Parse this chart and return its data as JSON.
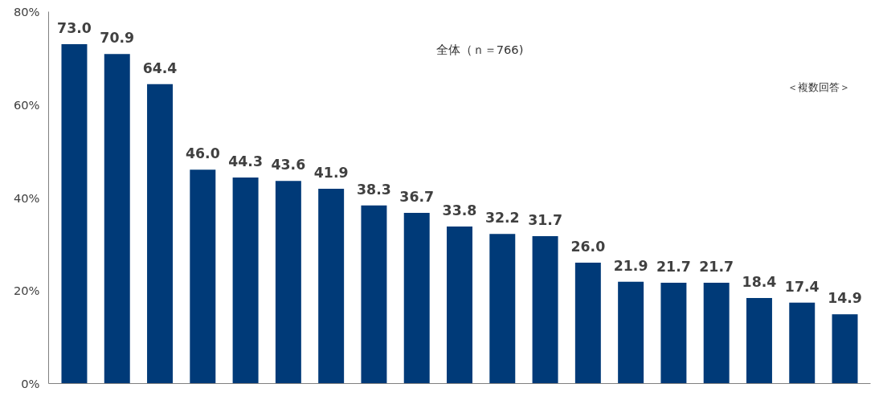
{
  "chart_data": {
    "type": "bar",
    "categories": [
      null,
      null,
      null,
      null,
      null,
      null,
      null,
      null,
      null,
      null,
      null,
      null,
      null,
      null,
      null,
      null,
      null,
      null,
      null
    ],
    "values": [
      73.0,
      70.9,
      64.4,
      46.0,
      44.3,
      43.6,
      41.9,
      38.3,
      36.7,
      33.8,
      32.2,
      31.7,
      26.0,
      21.9,
      21.7,
      21.7,
      18.4,
      17.4,
      14.9
    ],
    "color": "#003a78",
    "ylim": [
      0,
      80
    ],
    "yticks": [
      {
        "value": 0,
        "label": "0%"
      },
      {
        "value": 20,
        "label": "20%"
      },
      {
        "value": 40,
        "label": "40%"
      },
      {
        "value": 60,
        "label": "60%"
      },
      {
        "value": 80,
        "label": "80%"
      }
    ],
    "tick_labels": "y",
    "value_labels": [
      "73.0",
      "70.9",
      "64.4",
      "46.0",
      "44.3",
      "43.6",
      "41.9",
      "38.3",
      "36.7",
      "33.8",
      "32.2",
      "31.7",
      "26.0",
      "21.9",
      "21.7",
      "21.7",
      "18.4",
      "17.4",
      "14.9"
    ],
    "grid": false,
    "annotations": [
      "全体（ｎ＝766)",
      "＜複数回答＞"
    ]
  }
}
